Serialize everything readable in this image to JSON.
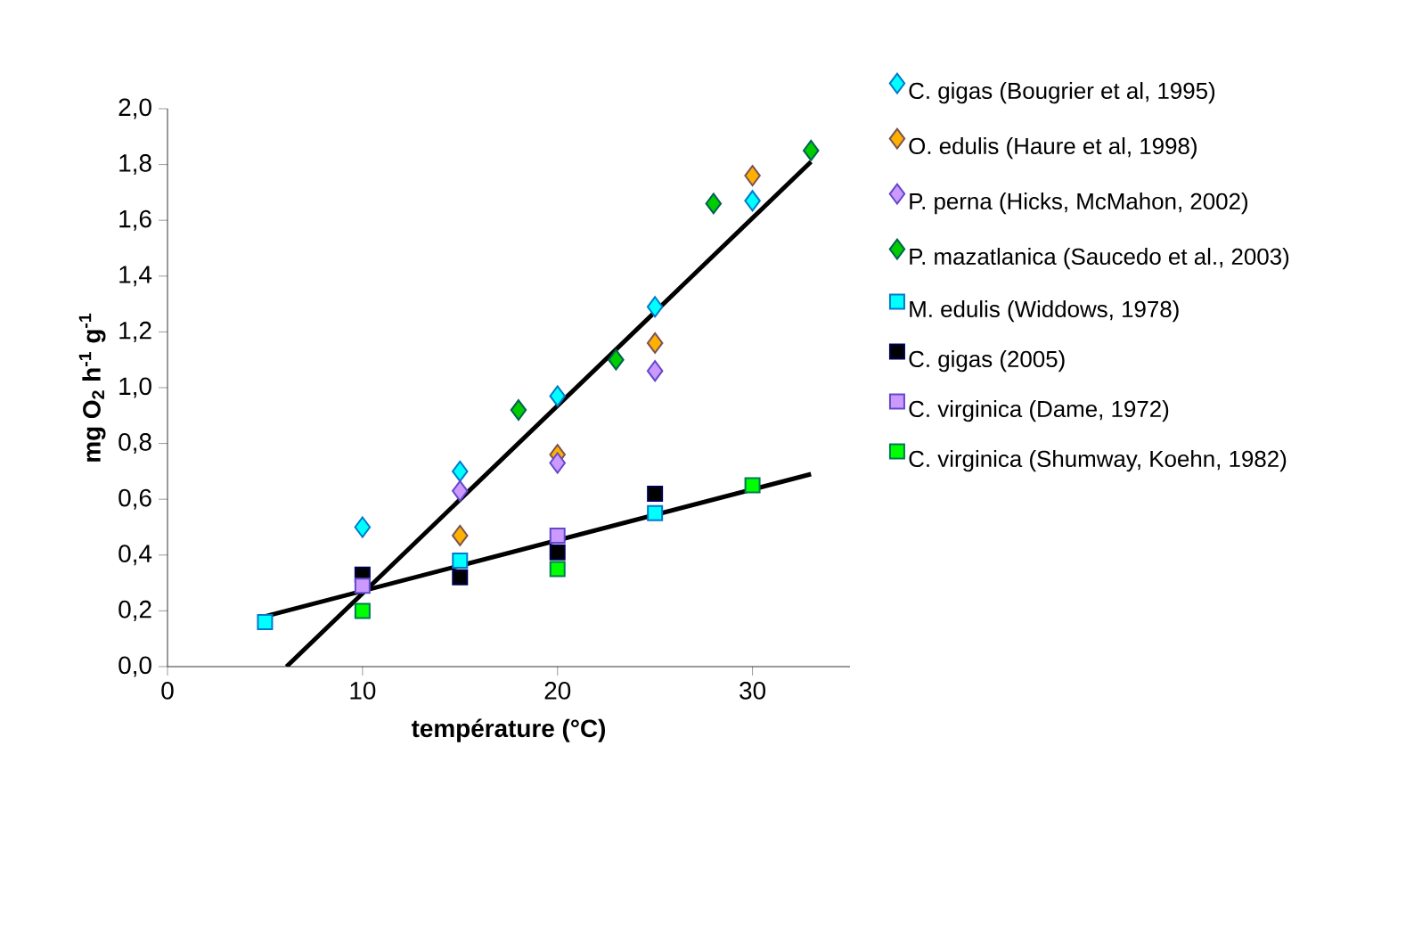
{
  "chart_data": {
    "type": "scatter",
    "xlabel": "température (°C)",
    "ylabel": "mg O$_{2}$ h$^{-1}$ g$^{-1}$",
    "xlim": [
      0,
      35
    ],
    "ylim": [
      0,
      2
    ],
    "xticks": [
      0,
      10,
      20,
      30
    ],
    "yticks": [
      {
        "value": 0,
        "label": "0,0"
      },
      {
        "value": 0.2,
        "label": "0,2"
      },
      {
        "value": 0.4,
        "label": "0,4"
      },
      {
        "value": 0.6,
        "label": "0,6"
      },
      {
        "value": 0.8,
        "label": "0,8"
      },
      {
        "value": 1.0,
        "label": "1,0"
      },
      {
        "value": 1.2,
        "label": "1,2"
      },
      {
        "value": 1.4,
        "label": "1,4"
      },
      {
        "value": 1.6,
        "label": "1,6"
      },
      {
        "value": 1.8,
        "label": "1,8"
      },
      {
        "value": 2.0,
        "label": "2,0"
      }
    ],
    "grid": false,
    "legend": "right",
    "series": [
      {
        "name": "C. gigas (Bougrier et al, 1995)",
        "color": "#00ffff",
        "marker": "diamond",
        "x": [
          10,
          15,
          20,
          25,
          30
        ],
        "values": [
          0.5,
          0.7,
          0.97,
          1.29,
          1.67
        ]
      },
      {
        "name": "O. edulis (Haure et al, 1998)",
        "color": "#ffb000",
        "marker": "diamond",
        "x": [
          15,
          20,
          25,
          30
        ],
        "values": [
          0.47,
          0.76,
          1.16,
          1.76
        ]
      },
      {
        "name": "P. perna (Hicks, McMahon, 2002)",
        "color": "#cc99ff",
        "marker": "diamond",
        "x": [
          15,
          20,
          25
        ],
        "values": [
          0.63,
          0.73,
          1.06
        ]
      },
      {
        "name": "P. mazatlanica (Saucedo et al., 2003)",
        "color": "#00cc00",
        "marker": "diamond",
        "x": [
          18,
          23,
          28,
          33
        ],
        "values": [
          0.92,
          1.1,
          1.66,
          1.85
        ]
      },
      {
        "name": "M. edulis (Widdows, 1978)",
        "color": "#00ffff",
        "marker": "square",
        "x": [
          5,
          15,
          25
        ],
        "values": [
          0.16,
          0.38,
          0.55
        ]
      },
      {
        "name": "C. gigas (2005)",
        "color": "#000000",
        "marker": "square",
        "x": [
          10,
          15,
          20,
          25
        ],
        "values": [
          0.33,
          0.32,
          0.41,
          0.62
        ]
      },
      {
        "name": "C. virginica (Dame, 1972)",
        "color": "#cc99ff",
        "marker": "square",
        "x": [
          10,
          20
        ],
        "values": [
          0.29,
          0.47
        ]
      },
      {
        "name": "C. virginica (Shumway, Koehn, 1982)",
        "color": "#00ff00",
        "marker": "square",
        "x": [
          10,
          20,
          30
        ],
        "values": [
          0.2,
          0.35,
          0.65
        ]
      },
      {
        "type": "line",
        "color": "#000000",
        "marker": "none",
        "line_style": "solid",
        "x": [
          6.1,
          33
        ],
        "values": [
          0,
          1.81
        ]
      },
      {
        "type": "line",
        "color": "#000000",
        "marker": "none",
        "line_style": "solid",
        "x": [
          5,
          33
        ],
        "values": [
          0.18,
          0.69
        ]
      }
    ]
  }
}
